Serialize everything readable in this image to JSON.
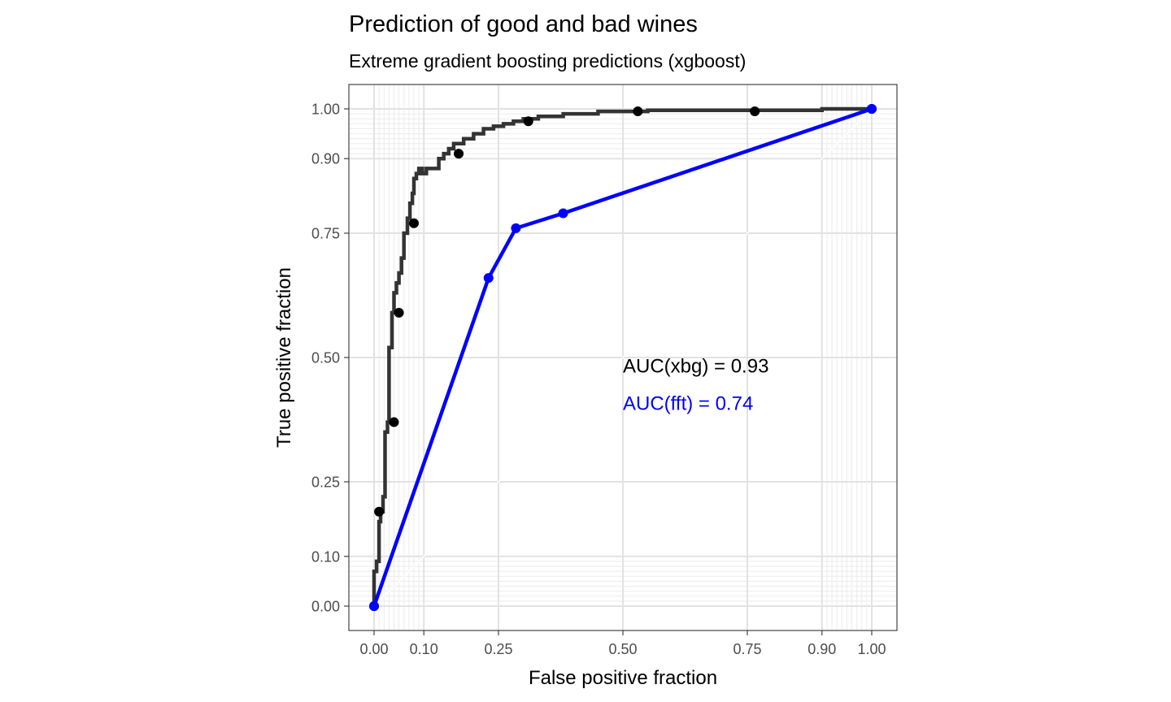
{
  "chart_data": {
    "type": "line",
    "title": "Prediction of good and bad wines",
    "subtitle": "Extreme gradient boosting predictions (xgboost)",
    "xlabel": "False positive fraction",
    "ylabel": "True positive fraction",
    "xlim": [
      0,
      1
    ],
    "ylim": [
      0,
      1
    ],
    "x_ticks": [
      0,
      0.1,
      0.25,
      0.5,
      0.75,
      0.9,
      1
    ],
    "y_ticks": [
      0,
      0.1,
      0.25,
      0.5,
      0.75,
      0.9,
      1
    ],
    "x_tick_labels": [
      "0.00",
      "0.10",
      "0.25",
      "0.50",
      "0.75",
      "0.90",
      "1.00"
    ],
    "y_tick_labels": [
      "0.00",
      "0.10",
      "0.25",
      "0.50",
      "0.75",
      "0.90",
      "1.00"
    ],
    "minor_grid": [
      0.01,
      0.02,
      0.03,
      0.04,
      0.05,
      0.06,
      0.07,
      0.08,
      0.09,
      0.91,
      0.92,
      0.93,
      0.94,
      0.95,
      0.96,
      0.97,
      0.98,
      0.99
    ],
    "grid": true,
    "legend": "none",
    "series": [
      {
        "key": "xgboost",
        "color": "#333333",
        "style": "step",
        "x": [
          0.0,
          0.0,
          0.005,
          0.005,
          0.01,
          0.01,
          0.013,
          0.013,
          0.018,
          0.018,
          0.022,
          0.022,
          0.027,
          0.027,
          0.03,
          0.03,
          0.036,
          0.036,
          0.04,
          0.04,
          0.045,
          0.045,
          0.05,
          0.05,
          0.055,
          0.055,
          0.06,
          0.06,
          0.067,
          0.067,
          0.072,
          0.072,
          0.077,
          0.077,
          0.08,
          0.08,
          0.085,
          0.085,
          0.09,
          0.09,
          0.097,
          0.097,
          0.105,
          0.105,
          0.13,
          0.13,
          0.14,
          0.14,
          0.15,
          0.15,
          0.16,
          0.16,
          0.18,
          0.18,
          0.2,
          0.2,
          0.22,
          0.22,
          0.24,
          0.24,
          0.26,
          0.26,
          0.28,
          0.28,
          0.3,
          0.3,
          0.33,
          0.33,
          0.38,
          0.38,
          0.45,
          0.45,
          0.55,
          0.55,
          0.9,
          0.9,
          1.0
        ],
        "y": [
          0.0,
          0.07,
          0.07,
          0.09,
          0.09,
          0.17,
          0.17,
          0.19,
          0.19,
          0.22,
          0.22,
          0.35,
          0.35,
          0.37,
          0.37,
          0.52,
          0.52,
          0.59,
          0.59,
          0.63,
          0.63,
          0.65,
          0.65,
          0.67,
          0.67,
          0.7,
          0.7,
          0.75,
          0.75,
          0.78,
          0.78,
          0.81,
          0.81,
          0.83,
          0.83,
          0.86,
          0.86,
          0.87,
          0.87,
          0.88,
          0.88,
          0.87,
          0.87,
          0.88,
          0.88,
          0.9,
          0.9,
          0.91,
          0.91,
          0.92,
          0.92,
          0.93,
          0.93,
          0.94,
          0.94,
          0.95,
          0.95,
          0.96,
          0.96,
          0.965,
          0.965,
          0.97,
          0.97,
          0.975,
          0.975,
          0.98,
          0.98,
          0.985,
          0.985,
          0.99,
          0.99,
          0.995,
          0.995,
          0.997,
          0.997,
          1.0,
          1.0
        ],
        "points_x": [
          0.0,
          0.01,
          0.04,
          0.05,
          0.08,
          0.17,
          0.31,
          0.53,
          0.765,
          1.0
        ],
        "points_y": [
          0.0,
          0.19,
          0.37,
          0.59,
          0.77,
          0.91,
          0.975,
          0.995,
          0.995,
          1.0
        ]
      },
      {
        "key": "fft",
        "color": "#0000ff",
        "style": "line",
        "x": [
          0.0,
          0.23,
          0.285,
          0.38,
          1.0
        ],
        "y": [
          0.0,
          0.66,
          0.76,
          0.79,
          1.0
        ],
        "points_x": [
          0.0,
          0.23,
          0.285,
          0.38,
          1.0
        ],
        "points_y": [
          0.0,
          0.66,
          0.76,
          0.79,
          1.0
        ]
      }
    ],
    "annotations": [
      {
        "text": "AUC(xbg) = 0.93",
        "x": 0.5,
        "y": 0.47,
        "color": "#000000"
      },
      {
        "text": "AUC(fft) = 0.74",
        "x": 0.5,
        "y": 0.395,
        "color": "#0000ff"
      }
    ]
  }
}
